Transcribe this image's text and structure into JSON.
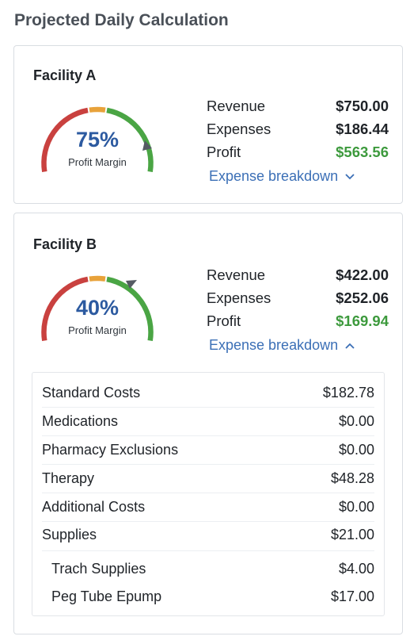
{
  "page": {
    "title": "Projected Daily Calculation"
  },
  "colors": {
    "red": "#c9413f",
    "orange": "#e8a23a",
    "green": "#4aa544",
    "blue": "#2c5aa0",
    "profit_green": "#3d9a3d",
    "link": "#3b6fb6"
  },
  "facilities": [
    {
      "name": "Facility A",
      "gauge": {
        "percent": "75%",
        "label": "Profit Margin",
        "value": 0.75
      },
      "stats": [
        {
          "label": "Revenue",
          "value": "$750.00"
        },
        {
          "label": "Expenses",
          "value": "$186.44"
        },
        {
          "label": "Profit",
          "value": "$563.56"
        }
      ],
      "breakdown": {
        "label": "Expense breakdown",
        "icon": "chevron-down-icon",
        "expanded": false
      }
    },
    {
      "name": "Facility B",
      "gauge": {
        "percent": "40%",
        "label": "Profit Margin",
        "value": 0.4
      },
      "stats": [
        {
          "label": "Revenue",
          "value": "$422.00"
        },
        {
          "label": "Expenses",
          "value": "$252.06"
        },
        {
          "label": "Profit",
          "value": "$169.94"
        }
      ],
      "breakdown": {
        "label": "Expense breakdown",
        "icon": "chevron-up-icon",
        "expanded": true,
        "items": [
          {
            "label": "Standard Costs",
            "value": "$182.78"
          },
          {
            "label": "Medications",
            "value": "$0.00"
          },
          {
            "label": "Pharmacy Exclusions",
            "value": "$0.00"
          },
          {
            "label": "Therapy",
            "value": "$48.28"
          },
          {
            "label": "Additional Costs",
            "value": "$0.00"
          },
          {
            "label": "Supplies",
            "value": "$21.00"
          },
          {
            "label": "Trach Supplies",
            "value": "$4.00"
          },
          {
            "label": "Peg Tube Epump",
            "value": "$17.00"
          }
        ]
      }
    }
  ]
}
